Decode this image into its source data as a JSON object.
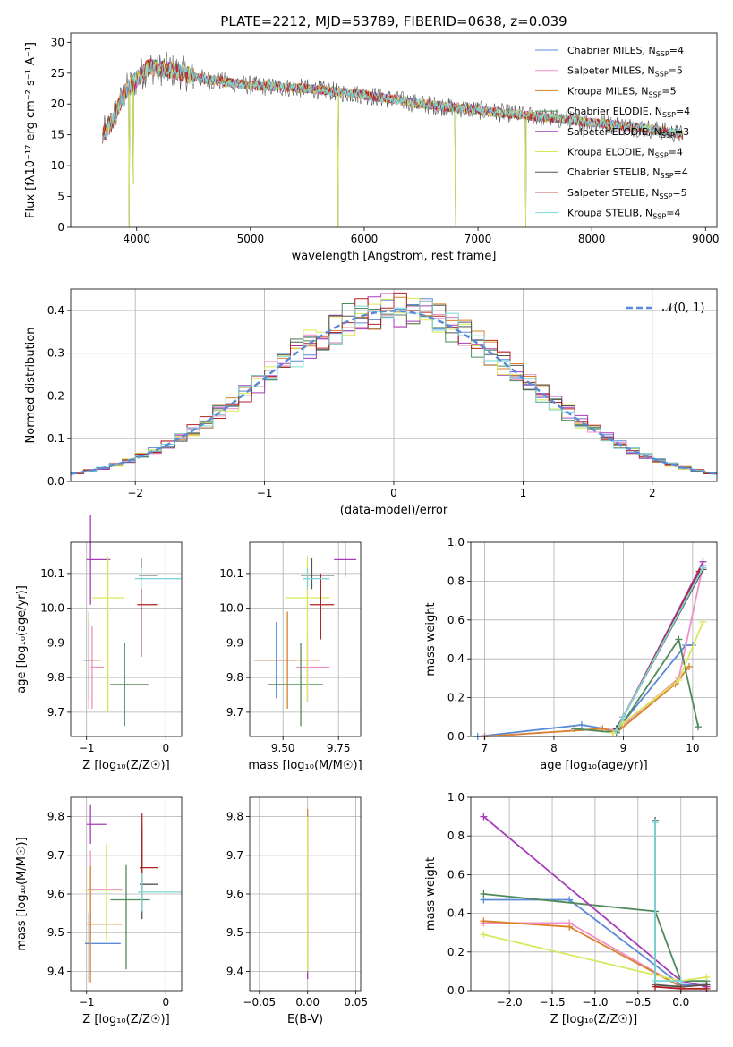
{
  "figure": {
    "title": "PLATE=2212, MJD=53789, FIBERID=0638, z=0.039"
  },
  "colors": {
    "palette": [
      "#5b8ad6",
      "#f08fc8",
      "#d9822b",
      "#4f8a5c",
      "#a63db8",
      "#d9e85a",
      "#555555",
      "#b22222",
      "#7fd6d8"
    ],
    "grid": "#b0b0b0",
    "gauss": "#5b8ad6"
  },
  "chart_data": [
    {
      "id": "spectrum",
      "type": "line",
      "xlabel": "wavelength [Angstrom, rest frame]",
      "ylabel": "Flux [fλ10⁻¹⁷ erg cm⁻² s⁻¹ A⁻¹]",
      "xlim": [
        3420,
        9100
      ],
      "ylim": [
        0,
        31.5
      ],
      "xticks": [
        4000,
        5000,
        6000,
        7000,
        8000,
        9000
      ],
      "yticks": [
        0,
        5,
        10,
        15,
        20,
        25,
        30
      ],
      "grid": false,
      "legend_position": "top-right",
      "continuum_points": [
        [
          3700,
          15
        ],
        [
          3750,
          16
        ],
        [
          3800,
          18
        ],
        [
          3900,
          22
        ],
        [
          4000,
          24
        ],
        [
          4100,
          26
        ],
        [
          4300,
          25.5
        ],
        [
          4600,
          24
        ],
        [
          5000,
          23
        ],
        [
          5500,
          22.5
        ],
        [
          6000,
          21.5
        ],
        [
          6500,
          20
        ],
        [
          7000,
          19
        ],
        [
          7500,
          18
        ],
        [
          8000,
          17
        ],
        [
          8500,
          16
        ],
        [
          8800,
          15
        ]
      ],
      "spikes": [
        [
          3934,
          0
        ],
        [
          3968,
          7
        ],
        [
          5770,
          0
        ],
        [
          6800,
          0
        ],
        [
          7420,
          0
        ]
      ],
      "series": [
        {
          "name": "Chabrier MILES, N_SSP=4"
        },
        {
          "name": "Salpeter MILES, N_SSP=5"
        },
        {
          "name": "Kroupa MILES, N_SSP=5"
        },
        {
          "name": "Chabrier ELODIE, N_SSP=4"
        },
        {
          "name": "Salpeter ELODIE, N_SSP=3"
        },
        {
          "name": "Kroupa ELODIE, N_SSP=4"
        },
        {
          "name": "Chabrier STELIB, N_SSP=4"
        },
        {
          "name": "Salpeter STELIB, N_SSP=5"
        },
        {
          "name": "Kroupa STELIB, N_SSP=4"
        }
      ]
    },
    {
      "id": "residuals",
      "type": "bar",
      "xlabel": "(data-model)/error",
      "ylabel": "Normed distribution",
      "xlim": [
        -2.5,
        2.5
      ],
      "ylim": [
        0,
        0.45
      ],
      "xticks": [
        -2,
        -1,
        0,
        1,
        2
      ],
      "yticks": [
        0.0,
        0.1,
        0.2,
        0.3,
        0.4
      ],
      "grid": true,
      "legend_position": "top-right",
      "gaussian_label": "𝒩(0, 1)",
      "bin_width": 0.1
    },
    {
      "id": "age_vs_Z",
      "type": "scatter",
      "xlabel": "Z [log₁₀(Z/Z☉)]",
      "ylabel": "age  [log₁₀(age/yr)]",
      "xlim": [
        -1.2,
        0.2
      ],
      "ylim": [
        9.63,
        10.19
      ],
      "xticks": [
        -1,
        0
      ],
      "yticks": [
        9.7,
        9.8,
        9.9,
        10.0,
        10.1
      ],
      "grid": true,
      "points": [
        {
          "x": -0.97,
          "y": 9.85,
          "xerr": [
            0.07,
            0.05
          ],
          "yerr": [
            0.11,
            0.11
          ]
        },
        {
          "x": -0.93,
          "y": 9.83,
          "xerr": [
            0.02,
            0.15
          ],
          "yerr": [
            0.12,
            0.12
          ]
        },
        {
          "x": -0.97,
          "y": 9.85,
          "xerr": [
            0.03,
            0.15
          ],
          "yerr": [
            0.14,
            0.14
          ]
        },
        {
          "x": -0.52,
          "y": 9.78,
          "xerr": [
            0.18,
            0.3
          ],
          "yerr": [
            0.12,
            0.12
          ]
        },
        {
          "x": -0.95,
          "y": 10.14,
          "xerr": [
            0.05,
            0.25
          ],
          "yerr": [
            0.13,
            0.13
          ]
        },
        {
          "x": -0.73,
          "y": 10.03,
          "xerr": [
            0.2,
            0.2
          ],
          "yerr": [
            0.33,
            0.12
          ]
        },
        {
          "x": -0.31,
          "y": 10.095,
          "xerr": [
            0.03,
            0.2
          ],
          "yerr": [
            0.04,
            0.05
          ]
        },
        {
          "x": -0.31,
          "y": 10.01,
          "xerr": [
            0.05,
            0.2
          ],
          "yerr": [
            0.15,
            0.09
          ]
        },
        {
          "x": -0.31,
          "y": 10.085,
          "xerr": [
            0.08,
            0.5
          ],
          "yerr": [
            0.03,
            0.03
          ]
        }
      ]
    },
    {
      "id": "age_vs_mass",
      "type": "scatter",
      "xlabel": "mass [log₁₀(M/M☉)]",
      "ylabel": "",
      "xlim": [
        9.35,
        9.85
      ],
      "ylim": [
        9.63,
        10.19
      ],
      "xticks": [
        9.5,
        9.75
      ],
      "yticks": [
        9.7,
        9.8,
        9.9,
        10.0,
        10.1
      ],
      "grid": true,
      "points": [
        {
          "x": 9.47,
          "y": 9.85,
          "xerr": [
            0.1,
            0.08
          ],
          "yerr": [
            0.11,
            0.11
          ]
        },
        {
          "x": 9.61,
          "y": 9.83,
          "xerr": [
            0.05,
            0.1
          ],
          "yerr": [
            0.1,
            0.1
          ]
        },
        {
          "x": 9.52,
          "y": 9.85,
          "xerr": [
            0.14,
            0.15
          ],
          "yerr": [
            0.14,
            0.14
          ]
        },
        {
          "x": 9.58,
          "y": 9.78,
          "xerr": [
            0.15,
            0.1
          ],
          "yerr": [
            0.12,
            0.12
          ]
        },
        {
          "x": 9.78,
          "y": 10.14,
          "xerr": [
            0.05,
            0.05
          ],
          "yerr": [
            0.05,
            0.05
          ]
        },
        {
          "x": 9.61,
          "y": 10.03,
          "xerr": [
            0.1,
            0.1
          ],
          "yerr": [
            0.3,
            0.12
          ]
        },
        {
          "x": 9.63,
          "y": 10.095,
          "xerr": [
            0.05,
            0.1
          ],
          "yerr": [
            0.04,
            0.05
          ]
        },
        {
          "x": 9.67,
          "y": 10.01,
          "xerr": [
            0.05,
            0.06
          ],
          "yerr": [
            0.1,
            0.09
          ]
        },
        {
          "x": 9.61,
          "y": 10.085,
          "xerr": [
            0.02,
            0.1
          ],
          "yerr": [
            0.03,
            0.03
          ]
        }
      ]
    },
    {
      "id": "weight_vs_age",
      "type": "line",
      "xlabel": "age  [log₁₀(age/yr)]",
      "ylabel": "mass weight",
      "xlim": [
        6.8,
        10.35
      ],
      "ylim": [
        0,
        1.0
      ],
      "xticks": [
        7,
        8,
        9,
        10
      ],
      "yticks": [
        0.0,
        0.2,
        0.4,
        0.6,
        0.8,
        1.0
      ],
      "grid": true,
      "series": [
        {
          "x": [
            6.9,
            8.4,
            8.9,
            9.9,
            10.0
          ],
          "y": [
            0.0,
            0.06,
            0.03,
            0.47,
            0.47
          ]
        },
        {
          "x": [
            7.0,
            8.7,
            8.9,
            9.8,
            10.15
          ],
          "y": [
            0.0,
            0.04,
            0.03,
            0.3,
            0.88
          ]
        },
        {
          "x": [
            7.0,
            8.7,
            8.9,
            9.75,
            9.95
          ],
          "y": [
            0.0,
            0.04,
            0.02,
            0.27,
            0.36
          ]
        },
        {
          "x": [
            8.3,
            8.9,
            9.8,
            10.08
          ],
          "y": [
            0.04,
            0.02,
            0.5,
            0.05
          ]
        },
        {
          "x": [
            8.85,
            9.0,
            10.15
          ],
          "y": [
            0.02,
            0.1,
            0.9
          ]
        },
        {
          "x": [
            8.85,
            9.0,
            9.8,
            10.15
          ],
          "y": [
            0.02,
            0.07,
            0.29,
            0.59
          ]
        },
        {
          "x": [
            8.9,
            9.0,
            10.15
          ],
          "y": [
            0.04,
            0.1,
            0.86
          ]
        },
        {
          "x": [
            8.9,
            9.0,
            10.1
          ],
          "y": [
            0.03,
            0.1,
            0.85
          ]
        },
        {
          "x": [
            8.9,
            9.0,
            10.15
          ],
          "y": [
            0.03,
            0.1,
            0.87
          ]
        }
      ]
    },
    {
      "id": "mass_vs_Z",
      "type": "scatter",
      "xlabel": "Z [log₁₀(Z/Z☉)]",
      "ylabel": "mass [log₁₀(M/M☉)]",
      "xlim": [
        -1.2,
        0.2
      ],
      "ylim": [
        9.35,
        9.85
      ],
      "xticks": [
        -1,
        0
      ],
      "yticks": [
        9.4,
        9.5,
        9.6,
        9.7,
        9.8
      ],
      "grid": true,
      "points": [
        {
          "x": -0.97,
          "y": 9.472,
          "xerr": [
            0.05,
            0.4
          ],
          "yerr": [
            0.1,
            0.08
          ]
        },
        {
          "x": -0.95,
          "y": 9.612,
          "xerr": [
            0.04,
            0.4
          ],
          "yerr": [
            0.13,
            0.1
          ]
        },
        {
          "x": -0.95,
          "y": 9.522,
          "xerr": [
            0.05,
            0.4
          ],
          "yerr": [
            0.15,
            0.15
          ]
        },
        {
          "x": -0.5,
          "y": 9.585,
          "xerr": [
            0.2,
            0.3
          ],
          "yerr": [
            0.18,
            0.09
          ]
        },
        {
          "x": -0.95,
          "y": 9.78,
          "xerr": [
            0.05,
            0.2
          ],
          "yerr": [
            0.05,
            0.05
          ]
        },
        {
          "x": -0.75,
          "y": 9.61,
          "xerr": [
            0.3,
            0.2
          ],
          "yerr": [
            0.13,
            0.12
          ]
        },
        {
          "x": -0.3,
          "y": 9.625,
          "xerr": [
            0.03,
            0.2
          ],
          "yerr": [
            0.09,
            0.15
          ]
        },
        {
          "x": -0.3,
          "y": 9.668,
          "xerr": [
            0.03,
            0.2
          ],
          "yerr": [
            0.1,
            0.14
          ]
        },
        {
          "x": -0.3,
          "y": 9.605,
          "xerr": [
            0.05,
            0.5
          ],
          "yerr": [
            0.05,
            0.05
          ]
        }
      ]
    },
    {
      "id": "mass_vs_EBV",
      "type": "scatter",
      "xlabel": "E(B-V)",
      "ylabel": "",
      "xlim": [
        -0.06,
        0.055
      ],
      "ylim": [
        9.35,
        9.85
      ],
      "xticks": [
        -0.05,
        0.0,
        0.05
      ],
      "yticks": [
        9.4,
        9.5,
        9.6,
        9.7,
        9.8
      ],
      "grid": true,
      "points": [
        {
          "x": 0.0,
          "y": 9.6,
          "xerr": [
            0,
            0
          ],
          "yerr": [
            0.22,
            0.2
          ]
        },
        {
          "x": 0.0,
          "y": 9.6,
          "xerr": [
            0,
            0
          ],
          "yerr": [
            0.14,
            0.22
          ]
        },
        {
          "x": 0.0,
          "y": 9.6,
          "xerr": [
            0,
            0
          ],
          "yerr": [
            0.2,
            0.2
          ]
        }
      ]
    },
    {
      "id": "weight_vs_Z",
      "type": "line",
      "xlabel": "Z [log₁₀(Z/Z☉)]",
      "ylabel": "mass weight",
      "xlim": [
        -2.45,
        0.42
      ],
      "ylim": [
        0,
        1.0
      ],
      "xticks": [
        -2.0,
        -1.5,
        -1.0,
        -0.5,
        0.0
      ],
      "yticks": [
        0.0,
        0.2,
        0.4,
        0.6,
        0.8,
        1.0
      ],
      "grid": true,
      "series": [
        {
          "x": [
            -2.3,
            -1.3,
            0.0,
            0.3
          ],
          "y": [
            0.47,
            0.47,
            0.03,
            0.03
          ]
        },
        {
          "x": [
            -2.3,
            -1.3,
            0.0
          ],
          "y": [
            0.35,
            0.35,
            0.02
          ]
        },
        {
          "x": [
            -2.3,
            -1.3,
            0.0,
            0.3
          ],
          "y": [
            0.36,
            0.33,
            0.02,
            0.03
          ]
        },
        {
          "x": [
            -2.3,
            -0.3,
            0.0,
            0.3
          ],
          "y": [
            0.5,
            0.41,
            0.05,
            0.05
          ]
        },
        {
          "x": [
            -2.3,
            0.0,
            0.3
          ],
          "y": [
            0.9,
            0.05,
            0.02
          ]
        },
        {
          "x": [
            -2.3,
            0.0,
            0.3
          ],
          "y": [
            0.29,
            0.05,
            0.07
          ]
        },
        {
          "x": [
            -0.3,
            -0.3,
            0.0,
            0.3
          ],
          "y": [
            0.88,
            0.03,
            0.02,
            0.03
          ]
        },
        {
          "x": [
            -0.3,
            0.0,
            0.3
          ],
          "y": [
            0.02,
            0.01,
            0.01
          ]
        },
        {
          "x": [
            -0.3,
            -0.3,
            0.0
          ],
          "y": [
            0.87,
            0.05,
            0.05
          ]
        }
      ]
    }
  ]
}
